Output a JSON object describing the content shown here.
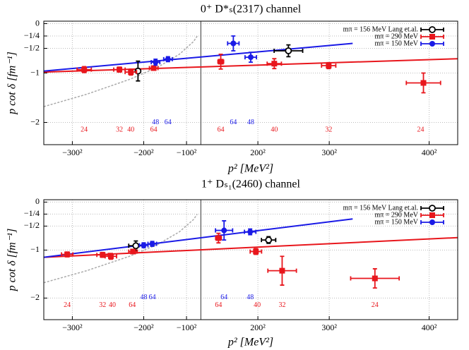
{
  "chart_data": [
    {
      "type": "scatter",
      "title": "0⁺ D*ₛ(2317) channel",
      "xlabel": "p² [MeV²]",
      "ylabel": "p cot δ [fm⁻¹]",
      "xlim": [
        -110000,
        180000
      ],
      "ylim": [
        -2.45,
        0.05
      ],
      "xticks": [
        {
          "value": -90000,
          "label": "−300²"
        },
        {
          "value": -40000,
          "label": "−200²"
        },
        {
          "value": -10000,
          "label": "−100²"
        },
        {
          "value": 40000,
          "label": "200²"
        },
        {
          "value": 90000,
          "label": "300²"
        },
        {
          "value": 160000,
          "label": "400²"
        }
      ],
      "yticks": [
        {
          "value": 0,
          "label": "0"
        },
        {
          "value": -0.25,
          "label": "−1/4"
        },
        {
          "value": -0.5,
          "label": "−1/2"
        },
        {
          "value": -1,
          "label": "−1"
        },
        {
          "value": -2,
          "label": "−2"
        }
      ],
      "grid": true,
      "legend": "upper right",
      "series": [
        {
          "name": "mπ = 156 MeV Lang et.al.",
          "color": "#000000",
          "marker": "open-circle",
          "x": [
            -44000,
            61400
          ],
          "values": [
            -0.96,
            -0.55
          ],
          "xerr": [
            0,
            10000
          ],
          "yerr": [
            0.2,
            0.12
          ]
        },
        {
          "name": "mπ = 290 MeV",
          "color": "#e8161c",
          "marker": "square",
          "x": [
            -81700,
            -57000,
            -49000,
            -33000,
            14000,
            51500,
            89600,
            156000
          ],
          "values": [
            -0.93,
            -0.93,
            -0.98,
            -0.9,
            -0.77,
            -0.81,
            -0.85,
            -1.2
          ],
          "xerr": [
            5000,
            4000,
            4000,
            3000,
            2000,
            5000,
            5000,
            12000
          ],
          "yerr": [
            0.06,
            0.05,
            0.06,
            0.04,
            0.15,
            0.1,
            0.06,
            0.2
          ]
        },
        {
          "name": "mπ = 150 MeV",
          "color": "#1a1ae6",
          "marker": "circle",
          "x": [
            -31700,
            -23000,
            22800,
            35000
          ],
          "values": [
            -0.78,
            -0.72,
            -0.4,
            -0.68
          ],
          "xerr": [
            3000,
            3000,
            4000,
            4000
          ],
          "yerr": [
            0.06,
            0.05,
            0.15,
            0.1
          ]
        }
      ],
      "fits": [
        {
          "color": "#e8161c",
          "x": [
            -110000,
            180000
          ],
          "values": [
            -0.98,
            -0.71
          ]
        },
        {
          "color": "#1a1ae6",
          "x": [
            -110000,
            106400
          ],
          "values": [
            -0.96,
            -0.4
          ]
        }
      ],
      "curve": {
        "color": "#aaaaaa",
        "x": [
          -110000,
          -80000,
          -50000,
          -30000,
          -15000,
          -5000,
          -2500
        ],
        "values": [
          -1.68,
          -1.43,
          -1.13,
          -0.88,
          -0.62,
          -0.36,
          -0.25
        ]
      },
      "annotations": [
        {
          "text": "24",
          "color": "#e8161c",
          "x": -81700,
          "y": -2.15
        },
        {
          "text": "32",
          "color": "#e8161c",
          "x": -57000,
          "y": -2.15
        },
        {
          "text": "40",
          "color": "#e8161c",
          "x": -49000,
          "y": -2.15
        },
        {
          "text": "64",
          "color": "#e8161c",
          "x": -33000,
          "y": -2.15
        },
        {
          "text": "64",
          "color": "#e8161c",
          "x": 14000,
          "y": -2.15
        },
        {
          "text": "40",
          "color": "#e8161c",
          "x": 51500,
          "y": -2.15
        },
        {
          "text": "32",
          "color": "#e8161c",
          "x": 89600,
          "y": -2.15
        },
        {
          "text": "24",
          "color": "#e8161c",
          "x": 154000,
          "y": -2.15
        },
        {
          "text": "48",
          "color": "#1a1ae6",
          "x": -31700,
          "y": -2.0
        },
        {
          "text": "64",
          "color": "#1a1ae6",
          "x": -23000,
          "y": -2.0
        },
        {
          "text": "64",
          "color": "#1a1ae6",
          "x": 22800,
          "y": -2.0
        },
        {
          "text": "48",
          "color": "#1a1ae6",
          "x": 35000,
          "y": -2.0
        }
      ]
    },
    {
      "type": "scatter",
      "title": "1⁺ Dₛ₁(2460) channel",
      "xlabel": "p² [MeV²]",
      "ylabel": "p cot δ [fm⁻¹]",
      "xlim": [
        -110000,
        180000
      ],
      "ylim": [
        -2.45,
        0.05
      ],
      "xticks": [
        {
          "value": -90000,
          "label": "−300²"
        },
        {
          "value": -40000,
          "label": "−200²"
        },
        {
          "value": -10000,
          "label": "−100²"
        },
        {
          "value": 40000,
          "label": "200²"
        },
        {
          "value": 90000,
          "label": "300²"
        },
        {
          "value": 160000,
          "label": "400²"
        }
      ],
      "yticks": [
        {
          "value": 0,
          "label": "0"
        },
        {
          "value": -0.25,
          "label": "−1/4"
        },
        {
          "value": -0.5,
          "label": "−1/2"
        },
        {
          "value": -1,
          "label": "−1"
        },
        {
          "value": -2,
          "label": "−2"
        }
      ],
      "grid": true,
      "legend": "upper right",
      "series": [
        {
          "name": "mπ = 156 MeV Lang et.al.",
          "color": "#000000",
          "marker": "open-circle",
          "x": [
            -45500,
            47500
          ],
          "values": [
            -0.91,
            -0.79
          ],
          "xerr": [
            5000,
            5000
          ],
          "yerr": [
            0.1,
            0.07
          ]
        },
        {
          "name": "mπ = 290 MeV",
          "color": "#e8161c",
          "marker": "square",
          "x": [
            -93600,
            -68800,
            -63000,
            -47500,
            12400,
            38600,
            57000,
            122000
          ],
          "values": [
            -1.09,
            -1.1,
            -1.13,
            -1.03,
            -0.75,
            -1.03,
            -1.43,
            -1.59
          ],
          "xerr": [
            4000,
            4000,
            4000,
            3000,
            2000,
            4000,
            10000,
            17000
          ],
          "yerr": [
            0.05,
            0.05,
            0.06,
            0.04,
            0.1,
            0.06,
            0.3,
            0.2
          ]
        },
        {
          "name": "mπ = 150 MeV",
          "color": "#1a1ae6",
          "marker": "circle",
          "x": [
            -40000,
            -34000,
            16300,
            34600
          ],
          "values": [
            -0.9,
            -0.87,
            -0.59,
            -0.62
          ],
          "xerr": [
            3000,
            3000,
            6000,
            4000
          ],
          "yerr": [
            0.05,
            0.05,
            0.2,
            0.06
          ]
        }
      ],
      "fits": [
        {
          "color": "#e8161c",
          "x": [
            -110000,
            180000
          ],
          "values": [
            -1.15,
            -0.74
          ]
        },
        {
          "color": "#1a1ae6",
          "x": [
            -110000,
            106400
          ],
          "values": [
            -1.15,
            -0.35
          ]
        }
      ],
      "curve": {
        "color": "#aaaaaa",
        "x": [
          -110000,
          -80000,
          -50000,
          -30000,
          -15000,
          -5000,
          -2500
        ],
        "values": [
          -1.68,
          -1.43,
          -1.13,
          -0.88,
          -0.62,
          -0.36,
          -0.25
        ]
      },
      "annotations": [
        {
          "text": "24",
          "color": "#e8161c",
          "x": -93600,
          "y": -2.15
        },
        {
          "text": "32",
          "color": "#e8161c",
          "x": -68800,
          "y": -2.15
        },
        {
          "text": "40",
          "color": "#e8161c",
          "x": -62000,
          "y": -2.15
        },
        {
          "text": "64",
          "color": "#e8161c",
          "x": -48000,
          "y": -2.15
        },
        {
          "text": "64",
          "color": "#e8161c",
          "x": 12400,
          "y": -2.15
        },
        {
          "text": "40",
          "color": "#e8161c",
          "x": 39500,
          "y": -2.15
        },
        {
          "text": "32",
          "color": "#e8161c",
          "x": 57000,
          "y": -2.15
        },
        {
          "text": "24",
          "color": "#e8161c",
          "x": 122000,
          "y": -2.15
        },
        {
          "text": "48",
          "color": "#1a1ae6",
          "x": -40000,
          "y": -1.99
        },
        {
          "text": "64",
          "color": "#1a1ae6",
          "x": -34000,
          "y": -1.99
        },
        {
          "text": "64",
          "color": "#1a1ae6",
          "x": 16300,
          "y": -1.99
        },
        {
          "text": "48",
          "color": "#1a1ae6",
          "x": 34600,
          "y": -1.99
        }
      ]
    }
  ]
}
